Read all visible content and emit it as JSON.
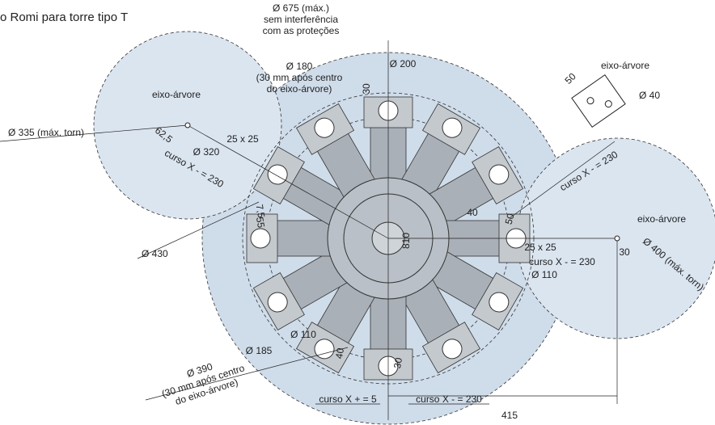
{
  "header": {
    "title": "o Romi para torre tipo T"
  },
  "labels": [
    {
      "lines": [
        "Ø 675 (máx.)",
        "sem interferência",
        "com as proteções"
      ]
    },
    {
      "lines": [
        "Ø 180",
        "(30 mm após centro",
        "do eixo-árvore)"
      ]
    },
    {
      "lines": [
        "Ø 200"
      ]
    },
    {
      "lines": [
        "30"
      ]
    },
    {
      "lines": [
        "eixo-árvore"
      ]
    },
    {
      "lines": [
        "Ø 335 (máx. torn)"
      ]
    },
    {
      "lines": [
        "62,5"
      ]
    },
    {
      "lines": [
        "Ø 320"
      ]
    },
    {
      "lines": [
        "curso X - = 230"
      ]
    },
    {
      "lines": [
        "25 x 25"
      ]
    },
    {
      "lines": [
        "7,5"
      ]
    },
    {
      "lines": [
        "55"
      ]
    },
    {
      "lines": [
        "Ø 430"
      ]
    },
    {
      "lines": [
        "eixo-árvore"
      ]
    },
    {
      "lines": [
        "50"
      ]
    },
    {
      "lines": [
        "Ø 40"
      ]
    },
    {
      "lines": [
        "curso X - = 230"
      ]
    },
    {
      "lines": [
        "eixo-árvore"
      ]
    },
    {
      "lines": [
        "40"
      ]
    },
    {
      "lines": [
        "50"
      ]
    },
    {
      "lines": [
        "25 x 25"
      ]
    },
    {
      "lines": [
        "curso X - = 230"
      ]
    },
    {
      "lines": [
        "Ø 110"
      ]
    },
    {
      "lines": [
        "30"
      ]
    },
    {
      "lines": [
        "Ø 400 (máx. torn)"
      ]
    },
    {
      "lines": [
        "810"
      ]
    },
    {
      "lines": [
        "Ø 110"
      ]
    },
    {
      "lines": [
        "Ø 185"
      ]
    },
    {
      "lines": [
        "40"
      ]
    },
    {
      "lines": [
        "30"
      ]
    },
    {
      "lines": [
        "Ø 390",
        "(30 mm após centro",
        "do eixo-árvore)"
      ]
    },
    {
      "lines": [
        "curso X + = 5"
      ]
    },
    {
      "lines": [
        "curso X - = 230"
      ]
    },
    {
      "lines": [
        "415"
      ]
    }
  ]
}
